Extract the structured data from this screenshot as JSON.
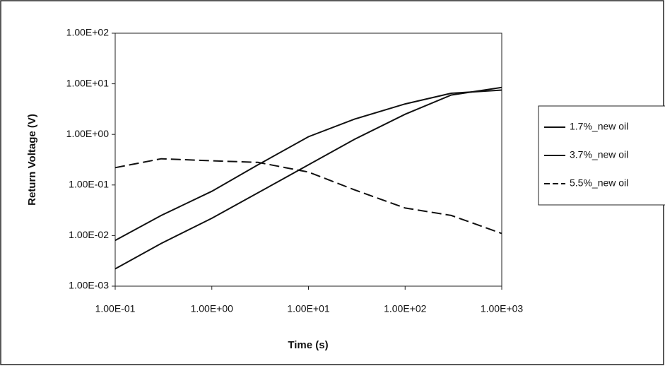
{
  "chart_data": {
    "type": "line",
    "x_label": "Time (s)",
    "y_label": "Return Voltage (V)",
    "xscale": "log",
    "yscale": "log",
    "grid": false,
    "legend": "right",
    "x": [
      0.1,
      0.3,
      1,
      3,
      10,
      30,
      100,
      300,
      1000
    ],
    "series": [
      {
        "name": "1.7%_new oil",
        "color": "#111111",
        "dash": false,
        "values": [
          0.008,
          0.025,
          0.075,
          0.25,
          0.9,
          2,
          4,
          6.5,
          7.5
        ]
      },
      {
        "name": "3.7%_new oil",
        "color": "#111111",
        "dash": false,
        "values": [
          0.0022,
          0.007,
          0.022,
          0.07,
          0.25,
          0.8,
          2.5,
          6,
          8.5
        ]
      },
      {
        "name": "5.5%_new oil",
        "color": "#111111",
        "dash": true,
        "values": [
          0.22,
          0.33,
          0.3,
          0.28,
          0.18,
          0.08,
          0.035,
          0.025,
          0.011
        ]
      }
    ],
    "xlim": [
      0.1,
      1000
    ],
    "xticks": [
      {
        "value": 0.1,
        "label": "1.00E-01"
      },
      {
        "value": 1,
        "label": "1.00E+00"
      },
      {
        "value": 10,
        "label": "1.00E+01"
      },
      {
        "value": 100,
        "label": "1.00E+02"
      },
      {
        "value": 1000,
        "label": "1.00E+03"
      }
    ],
    "ylim": [
      0.001,
      100
    ],
    "yticks": [
      {
        "value": 0.001,
        "label": "1.00E-03"
      },
      {
        "value": 0.01,
        "label": "1.00E-02"
      },
      {
        "value": 0.1,
        "label": "1.00E-01"
      },
      {
        "value": 1,
        "label": "1.00E+00"
      },
      {
        "value": 10,
        "label": "1.00E+01"
      },
      {
        "value": 100,
        "label": "1.00E+02"
      }
    ]
  }
}
